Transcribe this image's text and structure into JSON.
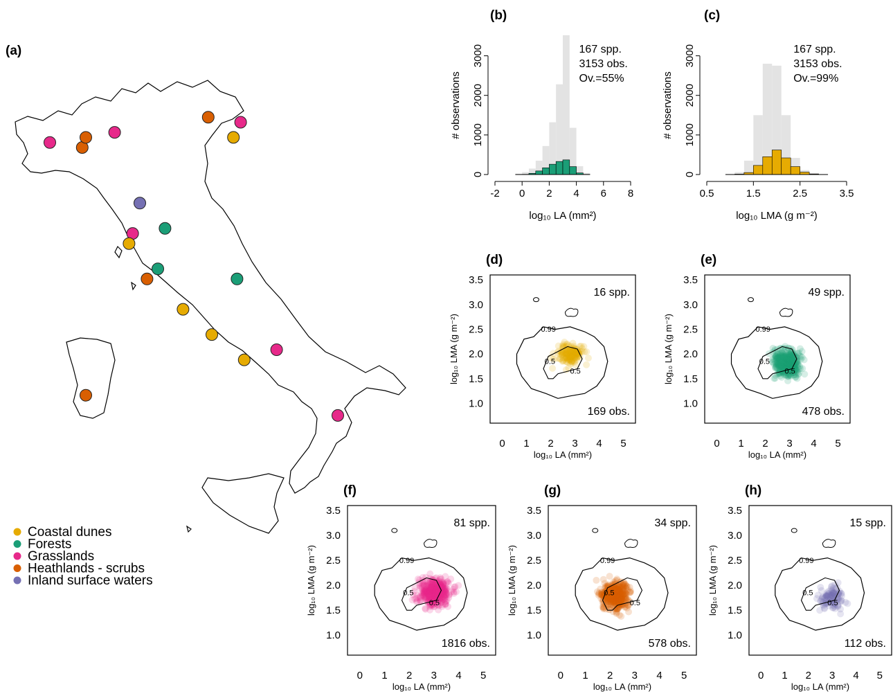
{
  "legend": {
    "items": [
      {
        "label": "Coastal dunes",
        "color": "#E6AB02"
      },
      {
        "label": "Forests",
        "color": "#1B9E77"
      },
      {
        "label": "Grasslands",
        "color": "#E7298A"
      },
      {
        "label": "Heathlands - scrubs",
        "color": "#D95F02"
      },
      {
        "label": "Inland surface waters",
        "color": "#7570B3"
      }
    ]
  },
  "chart_data": [
    {
      "id": "a",
      "panel_label": "(a)",
      "type": "scatter",
      "description_map": "outline map with site points",
      "points": [
        {
          "lon": 8.0,
          "lat": 45.6,
          "habitat": "Grasslands"
        },
        {
          "lon": 9.8,
          "lat": 45.8,
          "habitat": "Grasslands"
        },
        {
          "lon": 8.9,
          "lat": 45.5,
          "habitat": "Heathlands - scrubs"
        },
        {
          "lon": 9.0,
          "lat": 45.7,
          "habitat": "Heathlands - scrubs"
        },
        {
          "lon": 12.4,
          "lat": 46.1,
          "habitat": "Heathlands - scrubs"
        },
        {
          "lon": 13.3,
          "lat": 46.0,
          "habitat": "Grasslands"
        },
        {
          "lon": 13.1,
          "lat": 45.7,
          "habitat": "Coastal dunes"
        },
        {
          "lon": 10.5,
          "lat": 44.4,
          "habitat": "Inland surface waters"
        },
        {
          "lon": 11.2,
          "lat": 43.9,
          "habitat": "Forests"
        },
        {
          "lon": 10.3,
          "lat": 43.8,
          "habitat": "Grasslands"
        },
        {
          "lon": 10.2,
          "lat": 43.6,
          "habitat": "Coastal dunes"
        },
        {
          "lon": 11.0,
          "lat": 43.1,
          "habitat": "Forests"
        },
        {
          "lon": 10.7,
          "lat": 42.9,
          "habitat": "Heathlands - scrubs"
        },
        {
          "lon": 13.2,
          "lat": 42.9,
          "habitat": "Forests"
        },
        {
          "lon": 11.7,
          "lat": 42.3,
          "habitat": "Coastal dunes"
        },
        {
          "lon": 12.5,
          "lat": 41.8,
          "habitat": "Coastal dunes"
        },
        {
          "lon": 13.4,
          "lat": 41.3,
          "habitat": "Coastal dunes"
        },
        {
          "lon": 14.3,
          "lat": 41.5,
          "habitat": "Grasslands"
        },
        {
          "lon": 9.0,
          "lat": 40.6,
          "habitat": "Heathlands - scrubs"
        },
        {
          "lon": 16.0,
          "lat": 40.2,
          "habitat": "Grasslands"
        }
      ]
    },
    {
      "id": "b",
      "panel_label": "(b)",
      "type": "bar",
      "xlabel": "log₁₀ LA (mm²)",
      "ylabel": "# observations",
      "xlim": [
        -2,
        8
      ],
      "ylim": [
        0,
        3500
      ],
      "xticks": [
        -2,
        0,
        2,
        4,
        6,
        8
      ],
      "yticks": [
        0,
        1000,
        2000,
        3000
      ],
      "annotations": [
        "167 spp.",
        "3153 obs.",
        "Ov.=55%"
      ],
      "bin_edges": [
        -0.5,
        0,
        0.5,
        1,
        1.5,
        2,
        2.5,
        3,
        3.5,
        4,
        4.5,
        5
      ],
      "series": [
        {
          "name": "all",
          "color": "#e3e3e3",
          "values": [
            20,
            60,
            150,
            350,
            720,
            1320,
            2280,
            3520,
            1180,
            210,
            40
          ]
        },
        {
          "name": "Forests",
          "color": "#1B9E77",
          "values": [
            0,
            5,
            30,
            90,
            170,
            260,
            330,
            370,
            200,
            40,
            5
          ]
        }
      ]
    },
    {
      "id": "c",
      "panel_label": "(c)",
      "type": "bar",
      "xlabel": "log₁₀ LMA (g m⁻²)",
      "ylabel": "# observations",
      "xlim": [
        0.5,
        3.5
      ],
      "ylim": [
        0,
        3500
      ],
      "xticks": [
        0.5,
        1.5,
        2.5,
        3.5
      ],
      "yticks": [
        0,
        1000,
        2000,
        3000
      ],
      "annotations": [
        "167 spp.",
        "3153 obs.",
        "Ov.=99%"
      ],
      "bin_edges": [
        0.9,
        1.1,
        1.3,
        1.5,
        1.7,
        1.9,
        2.1,
        2.3,
        2.5,
        2.7,
        2.9,
        3.1
      ],
      "series": [
        {
          "name": "all",
          "color": "#e3e3e3",
          "values": [
            10,
            60,
            350,
            1500,
            2800,
            2750,
            1500,
            420,
            110,
            30,
            10
          ]
        },
        {
          "name": "Coastal dunes",
          "color": "#E6AB02",
          "values": [
            0,
            10,
            50,
            230,
            450,
            620,
            420,
            200,
            60,
            15,
            0
          ]
        }
      ]
    },
    {
      "id": "d",
      "panel_label": "(d)",
      "type": "scatter",
      "xlabel": "log₁₀ LA (mm²)",
      "ylabel": "log₁₀ LMA (g m⁻²)",
      "xlim": [
        -0.5,
        5.5
      ],
      "ylim": [
        0.6,
        3.6
      ],
      "xticks": [
        0,
        1,
        2,
        3,
        4,
        5
      ],
      "yticks": [
        1.0,
        1.5,
        2.0,
        2.5,
        3.0,
        3.5
      ],
      "spp": "16 spp.",
      "obs": "169 obs.",
      "color": "#E6AB02",
      "n_points": 169,
      "center": [
        2.8,
        2.0
      ],
      "spread": [
        0.6,
        0.25
      ],
      "contour_labels": [
        "0.99",
        "0.5",
        "0.5"
      ]
    },
    {
      "id": "e",
      "panel_label": "(e)",
      "type": "scatter",
      "xlabel": "log₁₀ LA (mm²)",
      "ylabel": "log₁₀ LMA (g m⁻²)",
      "xlim": [
        -0.5,
        5.5
      ],
      "ylim": [
        0.6,
        3.6
      ],
      "xticks": [
        0,
        1,
        2,
        3,
        4,
        5
      ],
      "yticks": [
        1.0,
        1.5,
        2.0,
        2.5,
        3.0,
        3.5
      ],
      "spp": "49 spp.",
      "obs": "478 obs.",
      "color": "#1B9E77",
      "n_points": 478,
      "center": [
        2.9,
        1.8
      ],
      "spread": [
        0.6,
        0.3
      ],
      "contour_labels": [
        "0.99",
        "0.5",
        "0.5"
      ]
    },
    {
      "id": "f",
      "panel_label": "(f)",
      "type": "scatter",
      "xlabel": "log₁₀ LA (mm²)",
      "ylabel": "log₁₀ LMA (g m⁻²)",
      "xlim": [
        -0.5,
        5.5
      ],
      "ylim": [
        0.6,
        3.6
      ],
      "xticks": [
        0,
        1,
        2,
        3,
        4,
        5
      ],
      "yticks": [
        1.0,
        1.5,
        2.0,
        2.5,
        3.0,
        3.5
      ],
      "spp": "81 spp.",
      "obs": "1816 obs.",
      "color": "#E7298A",
      "n_points": 1816,
      "center": [
        3.0,
        1.85
      ],
      "spread": [
        0.7,
        0.3
      ],
      "contour_labels": [
        "0.99",
        "0.5",
        "0.5"
      ]
    },
    {
      "id": "g",
      "panel_label": "(g)",
      "type": "scatter",
      "xlabel": "log₁₀ LA (mm²)",
      "ylabel": "log₁₀ LMA (g m⁻²)",
      "xlim": [
        -0.5,
        5.5
      ],
      "ylim": [
        0.6,
        3.6
      ],
      "xticks": [
        0,
        1,
        2,
        3,
        4,
        5
      ],
      "yticks": [
        1.0,
        1.5,
        2.0,
        2.5,
        3.0,
        3.5
      ],
      "spp": "34 spp.",
      "obs": "578 obs.",
      "color": "#D95F02",
      "n_points": 578,
      "center": [
        2.2,
        1.8
      ],
      "spread": [
        0.6,
        0.3
      ],
      "contour_labels": [
        "0.99",
        "0.5",
        "0.5"
      ]
    },
    {
      "id": "h",
      "panel_label": "(h)",
      "type": "scatter",
      "xlabel": "log₁₀ LA (mm²)",
      "ylabel": "log₁₀ LMA (g m⁻²)",
      "xlim": [
        -0.5,
        5.5
      ],
      "ylim": [
        0.6,
        3.6
      ],
      "xticks": [
        0,
        1,
        2,
        3,
        4,
        5
      ],
      "yticks": [
        1.0,
        1.5,
        2.0,
        2.5,
        3.0,
        3.5
      ],
      "spp": "15 spp.",
      "obs": "112 obs.",
      "color": "#7570B3",
      "n_points": 112,
      "center": [
        3.0,
        1.75
      ],
      "spread": [
        0.5,
        0.25
      ],
      "contour_labels": [
        "0.99",
        "0.5",
        "0.5"
      ]
    }
  ]
}
